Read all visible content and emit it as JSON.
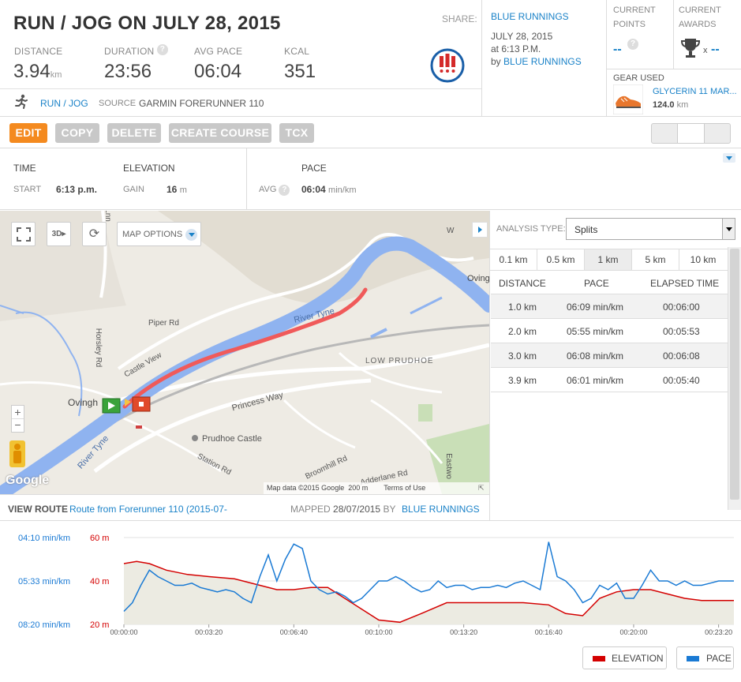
{
  "activity": {
    "title": "RUN / JOG ON JULY 28, 2015",
    "stats": [
      {
        "label": "DISTANCE",
        "value": "3.94",
        "unit": "km"
      },
      {
        "label": "DURATION",
        "value": "23:56"
      },
      {
        "label": "AVG PACE",
        "value": "06:04"
      },
      {
        "label": "KCAL",
        "value": "351"
      }
    ],
    "type": "RUN / JOG",
    "source_label": "SOURCE",
    "source_value": "GARMIN FORERUNNER 110",
    "share_label": "SHARE:"
  },
  "author": {
    "name": "BLUE RUNNINGS",
    "date": "JULY 28, 2015",
    "time": "at 6:13 P.M.",
    "by": "by",
    "by_name": "BLUE RUNNINGS"
  },
  "points": {
    "label1": "CURRENT",
    "label2": "POINTS",
    "value": "--"
  },
  "awards": {
    "label1": "CURRENT",
    "label2": "AWARDS",
    "x": "x",
    "value": "--"
  },
  "gear": {
    "label": "GEAR USED",
    "name": "GLYCERIN 11 MAR...",
    "distance": "124.0",
    "unit": "km"
  },
  "toolbar": {
    "edit": "EDIT",
    "copy": "COPY",
    "delete": "DELETE",
    "create_course": "CREATE COURSE",
    "tcx": "TCX"
  },
  "summary": {
    "time_label": "TIME",
    "start_label": "START",
    "start_value": "6:13 p.m.",
    "elevation_label": "ELEVATION",
    "gain_label": "GAIN",
    "gain_value": "16",
    "gain_unit": "m",
    "pace_label": "PACE",
    "avg_label": "AVG",
    "avg_value": "06:04",
    "avg_unit": "min/km"
  },
  "map": {
    "options_label": "MAP OPTIONS",
    "labels": {
      "river": "River Tyne",
      "river2": "River Tyne",
      "low_prudhoe": "LOW PRUDHOE",
      "castle_view": "Castle View",
      "piper": "Piper Rd",
      "horsley": "Horsley Rd",
      "princess": "Princess Way",
      "prudhoe_castle": "Prudhoe Castle",
      "station": "Station Rd",
      "broomhill": "Broomhill Rd",
      "adderlane": "Adderlane Rd",
      "ovingham": "Ovingh",
      "ovingham_right": "Ovingha",
      "eastwood": "Eastwo",
      "lnn": "Lnn",
      "w": "W"
    },
    "google": "Google",
    "copyright": "Map data ©2015 Google",
    "scale": "200 m",
    "terms": "Terms of Use"
  },
  "route": {
    "view_label": "VIEW ROUTE",
    "route_name": "Route from Forerunner 110 (2015-07-",
    "mapped_label": "MAPPED",
    "mapped_date": "28/07/2015",
    "by_label": "BY",
    "mapped_by": "BLUE RUNNINGS"
  },
  "analysis": {
    "type_label": "ANALYSIS TYPE:",
    "type_value": "Splits",
    "tabs": [
      "0.1 km",
      "0.5 km",
      "1 km",
      "5 km",
      "10 km"
    ],
    "headers": [
      "DISTANCE",
      "PACE",
      "ELAPSED TIME"
    ],
    "rows": [
      {
        "distance": "1.0 km",
        "pace": "06:09 min/km",
        "elapsed": "00:06:00"
      },
      {
        "distance": "2.0 km",
        "pace": "05:55 min/km",
        "elapsed": "00:05:53"
      },
      {
        "distance": "3.0 km",
        "pace": "06:08 min/km",
        "elapsed": "00:06:08"
      },
      {
        "distance": "3.9 km",
        "pace": "06:01 min/km",
        "elapsed": "00:05:40"
      }
    ]
  },
  "colors": {
    "orange": "#f48a1f",
    "blue": "#1a82c8",
    "elevation": "#d40000",
    "pace": "#1a7ad4"
  },
  "chart_data": {
    "type": "line",
    "x_ticks": [
      "00:00:00",
      "00:03:20",
      "00:06:40",
      "00:10:00",
      "00:13:20",
      "00:16:40",
      "00:20:00",
      "00:23:20"
    ],
    "x_tick_seconds": [
      0,
      200,
      400,
      600,
      800,
      1000,
      1200,
      1400
    ],
    "xlim": [
      0,
      1436
    ],
    "elevation_axis": {
      "ticks": [
        "60 m",
        "40 m",
        "20 m"
      ],
      "ylim": [
        20,
        60
      ]
    },
    "pace_axis": {
      "ticks": [
        "04:10 min/km",
        "05:33 min/km",
        "08:20 min/km"
      ]
    },
    "series": [
      {
        "name": "ELEVATION",
        "axis": "left",
        "x": [
          0,
          30,
          60,
          100,
          150,
          200,
          260,
          320,
          360,
          400,
          440,
          480,
          520,
          560,
          600,
          650,
          700,
          760,
          820,
          880,
          940,
          1000,
          1040,
          1080,
          1120,
          1160,
          1200,
          1240,
          1280,
          1320,
          1360,
          1436
        ],
        "values": [
          48,
          49,
          48,
          45,
          43,
          42,
          41,
          38,
          36,
          36,
          37,
          37,
          32,
          27,
          22,
          21,
          25,
          30,
          30,
          30,
          30,
          29,
          25,
          24,
          32,
          35,
          36,
          36,
          34,
          32,
          31,
          31
        ]
      },
      {
        "name": "PACE",
        "axis": "right",
        "x": [
          0,
          20,
          40,
          60,
          80,
          100,
          120,
          140,
          160,
          180,
          200,
          220,
          240,
          260,
          280,
          300,
          320,
          340,
          360,
          380,
          400,
          420,
          440,
          460,
          480,
          500,
          520,
          540,
          560,
          580,
          600,
          620,
          640,
          660,
          680,
          700,
          720,
          740,
          760,
          780,
          800,
          820,
          840,
          860,
          880,
          900,
          920,
          940,
          960,
          980,
          1000,
          1020,
          1040,
          1060,
          1080,
          1100,
          1120,
          1140,
          1160,
          1180,
          1200,
          1220,
          1240,
          1260,
          1280,
          1300,
          1320,
          1340,
          1360,
          1380,
          1400,
          1436
        ],
        "values": [
          26,
          30,
          38,
          45,
          42,
          40,
          38,
          38,
          39,
          37,
          36,
          35,
          36,
          35,
          32,
          30,
          42,
          52,
          40,
          50,
          57,
          55,
          40,
          36,
          34,
          35,
          33,
          30,
          32,
          36,
          40,
          40,
          42,
          40,
          37,
          35,
          36,
          40,
          37,
          38,
          38,
          36,
          37,
          37,
          38,
          37,
          39,
          40,
          38,
          36,
          58,
          42,
          40,
          36,
          30,
          32,
          38,
          36,
          39,
          32,
          32,
          38,
          45,
          40,
          40,
          38,
          40,
          38,
          38,
          39,
          40,
          40
        ]
      }
    ],
    "legend": [
      "ELEVATION",
      "PACE"
    ]
  }
}
